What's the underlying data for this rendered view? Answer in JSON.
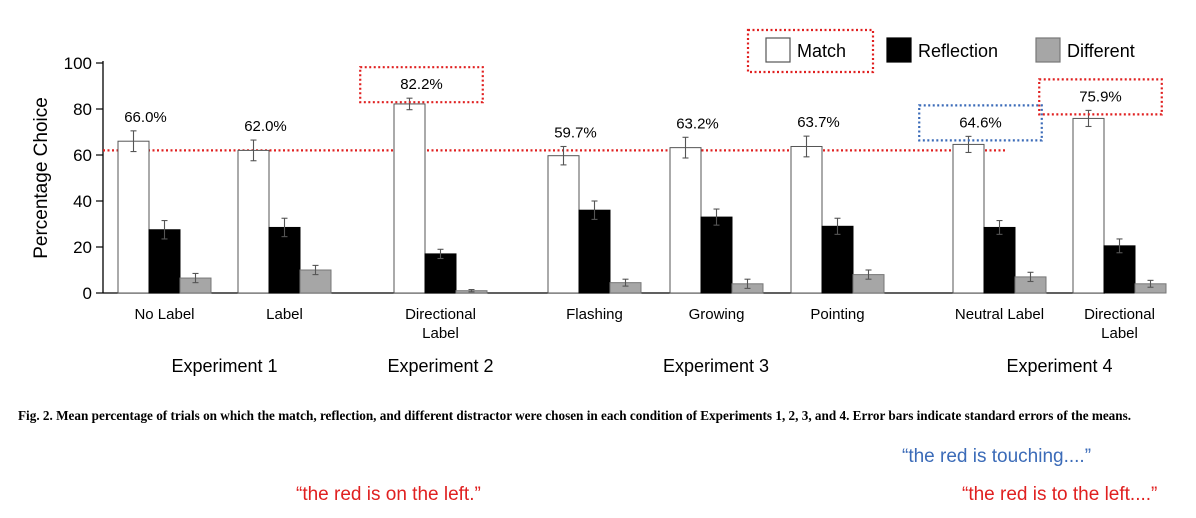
{
  "chart_data": {
    "type": "bar",
    "ylabel": "Percentage Choice",
    "ylim": [
      0,
      100
    ],
    "yticks": [
      "0",
      "20",
      "40",
      "60",
      "80",
      "100"
    ],
    "grid": false,
    "legend_position": "top-right",
    "reference_line": 62,
    "categories": [
      {
        "label": [
          "No Label"
        ],
        "group": "Experiment 1"
      },
      {
        "label": [
          "Label"
        ],
        "group": "Experiment 1"
      },
      {
        "label": [
          "Directional",
          "Label"
        ],
        "group": "Experiment 2"
      },
      {
        "label": [
          "Flashing"
        ],
        "group": "Experiment 3"
      },
      {
        "label": [
          "Growing"
        ],
        "group": "Experiment 3"
      },
      {
        "label": [
          "Pointing"
        ],
        "group": "Experiment 3"
      },
      {
        "label": [
          "Neutral Label"
        ],
        "group": "Experiment 4"
      },
      {
        "label": [
          "Directional",
          "Label"
        ],
        "group": "Experiment 4"
      }
    ],
    "groups": [
      "Experiment 1",
      "Experiment 2",
      "Experiment 3",
      "Experiment 4"
    ],
    "series": [
      {
        "name": "Match",
        "color": "#ffffff",
        "values": [
          66.0,
          62.0,
          82.2,
          59.7,
          63.2,
          63.7,
          64.6,
          75.9
        ],
        "errors": [
          4.5,
          4.5,
          2.5,
          4.0,
          4.5,
          4.5,
          3.5,
          3.5
        ]
      },
      {
        "name": "Reflection",
        "color": "#000000",
        "values": [
          27.5,
          28.5,
          17.0,
          36.0,
          33.0,
          29.0,
          28.5,
          20.5
        ],
        "errors": [
          4.0,
          4.0,
          2.0,
          4.0,
          3.5,
          3.5,
          3.0,
          3.0
        ]
      },
      {
        "name": "Different",
        "color": "#a6a6a6",
        "values": [
          6.5,
          10.0,
          1.0,
          4.5,
          4.0,
          8.0,
          7.0,
          4.0
        ],
        "errors": [
          2.0,
          2.0,
          0.5,
          1.5,
          2.0,
          2.0,
          2.0,
          1.5
        ]
      }
    ],
    "value_labels": [
      "66.0%",
      "62.0%",
      "82.2%",
      "59.7%",
      "63.2%",
      "63.7%",
      "64.6%",
      "75.9%"
    ],
    "highlights": [
      {
        "target": "legend-match",
        "color": "#e02020"
      },
      {
        "target": "value-2",
        "color": "#e02020"
      },
      {
        "target": "value-6",
        "color": "#3b6bb8"
      },
      {
        "target": "value-7",
        "color": "#e02020"
      }
    ]
  },
  "caption": {
    "prefix": "Fig. 2.",
    "text": "Mean percentage of trials on which the match, reflection, and different distractor were chosen in each condition of Experiments 1, 2, 3, and 4. Error bars indicate standard errors of the means."
  },
  "quotes": {
    "blue": "“the red is touching....”",
    "red_left": "“the red is on the left.”",
    "red_right": "“the red is to the left....”"
  }
}
